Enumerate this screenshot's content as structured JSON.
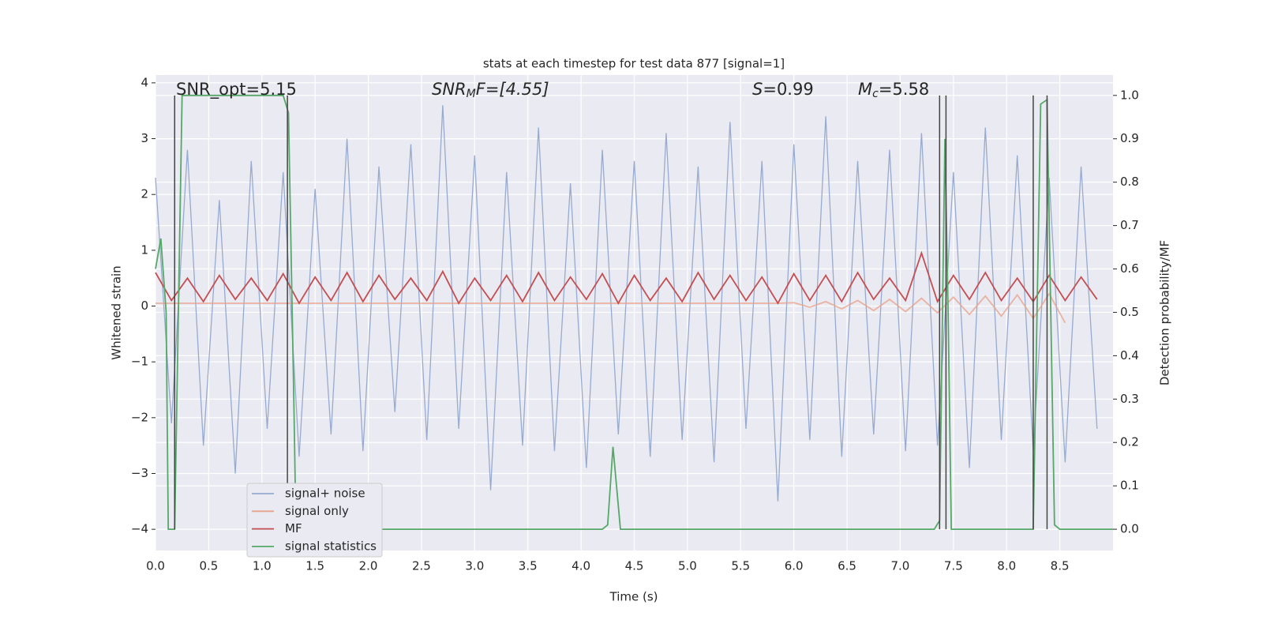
{
  "chart_data": {
    "type": "line",
    "title": "stats at each timestep for test data 877 [signal=1]",
    "x_label": "Time (s)",
    "y_label": "Whitened strain",
    "y2_label": "Detection probability/MF",
    "annotations": [
      {
        "parts": [
          {
            "text": "SNR_opt=5.15",
            "style": "normal"
          }
        ]
      },
      {
        "parts": [
          {
            "text": "SNR",
            "style": "italic"
          },
          {
            "text": "M",
            "style": "sub"
          },
          {
            "text": "F=[4.55]",
            "style": "italic-mixed"
          }
        ]
      },
      {
        "parts": [
          {
            "text": "S",
            "style": "italic"
          },
          {
            "text": "=0.99",
            "style": "normal"
          }
        ]
      },
      {
        "parts": [
          {
            "text": "M",
            "style": "italic"
          },
          {
            "text": "c",
            "style": "sub"
          },
          {
            "text": "=5.58",
            "style": "normal"
          }
        ]
      }
    ],
    "x": [
      0,
      0.15,
      0.3,
      0.45,
      0.6,
      0.75,
      0.9,
      1.05,
      1.2,
      1.35,
      1.5,
      1.65,
      1.8,
      1.95,
      2.1,
      2.25,
      2.4,
      2.55,
      2.7,
      2.85,
      3,
      3.15,
      3.3,
      3.45,
      3.6,
      3.75,
      3.9,
      4.05,
      4.2,
      4.35,
      4.5,
      4.65,
      4.8,
      4.95,
      5.1,
      5.25,
      5.4,
      5.55,
      5.7,
      5.85,
      6,
      6.15,
      6.3,
      6.45,
      6.6,
      6.75,
      6.9,
      7.05,
      7.2,
      7.35,
      7.5,
      7.65,
      7.8,
      7.95,
      8.1,
      8.25,
      8.4,
      8.55,
      8.7,
      8.85
    ],
    "series": [
      {
        "name": "signal+ noise",
        "color": "#97aacf",
        "values": [
          2.3,
          -2.1,
          2.8,
          -2.5,
          1.9,
          -3.0,
          2.6,
          -2.2,
          2.4,
          -2.7,
          2.1,
          -2.3,
          3.0,
          -2.6,
          2.5,
          -1.9,
          2.9,
          -2.4,
          3.6,
          -2.2,
          2.7,
          -3.3,
          2.4,
          -2.5,
          3.2,
          -2.6,
          2.2,
          -2.9,
          2.8,
          -2.3,
          2.6,
          -2.7,
          3.1,
          -2.4,
          2.5,
          -2.8,
          3.3,
          -2.2,
          2.6,
          -3.5,
          2.9,
          -2.4,
          3.4,
          -2.7,
          2.6,
          -2.3,
          2.8,
          -2.6,
          3.1,
          -2.5,
          2.4,
          -2.9,
          3.2,
          -2.4,
          2.7,
          -2.6,
          2.3,
          -2.8,
          2.5,
          -2.2
        ]
      },
      {
        "name": "signal only",
        "color": "#e8a48c",
        "values": [
          0.05,
          0.05,
          0.05,
          0.05,
          0.05,
          0.05,
          0.05,
          0.05,
          0.05,
          0.05,
          0.05,
          0.05,
          0.05,
          0.05,
          0.05,
          0.05,
          0.05,
          0.05,
          0.05,
          0.05,
          0.05,
          0.05,
          0.05,
          0.05,
          0.05,
          0.05,
          0.05,
          0.05,
          0.05,
          0.05,
          0.05,
          0.05,
          0.05,
          0.05,
          0.05,
          0.05,
          0.05,
          0.05,
          0.05,
          0.05,
          0.06,
          -0.02,
          0.08,
          -0.05,
          0.1,
          -0.08,
          0.12,
          -0.1,
          0.14,
          -0.12,
          0.16,
          -0.15,
          0.18,
          -0.18,
          0.2,
          -0.22,
          0.22,
          -0.3,
          null,
          null
        ]
      },
      {
        "name": "MF",
        "color": "#c44e52",
        "values": [
          0.6,
          0.1,
          0.5,
          0.08,
          0.55,
          0.12,
          0.5,
          0.1,
          0.58,
          0.05,
          0.52,
          0.1,
          0.6,
          0.08,
          0.55,
          0.12,
          0.5,
          0.1,
          0.62,
          0.05,
          0.5,
          0.1,
          0.55,
          0.08,
          0.6,
          0.1,
          0.52,
          0.12,
          0.58,
          0.05,
          0.55,
          0.1,
          0.5,
          0.08,
          0.6,
          0.12,
          0.55,
          0.1,
          0.52,
          0.05,
          0.58,
          0.1,
          0.55,
          0.08,
          0.6,
          0.12,
          0.5,
          0.1,
          0.95,
          0.08,
          0.55,
          0.12,
          0.6,
          0.1,
          0.5,
          0.08,
          0.55,
          0.1,
          0.52,
          0.12
        ]
      },
      {
        "name": "signal statistics",
        "color": "#55a868",
        "axis": "y2",
        "x": [
          0,
          0.05,
          0.1,
          0.12,
          0.18,
          0.25,
          1.2,
          1.25,
          1.3,
          1.32,
          4.2,
          4.25,
          4.3,
          4.37,
          7.32,
          7.37,
          7.42,
          7.45,
          7.48,
          8.25,
          8.32,
          8.38,
          8.45,
          8.5,
          9.0
        ],
        "values": [
          0.6,
          0.67,
          0.5,
          0,
          0,
          1.0,
          1.0,
          0.96,
          0.3,
          0,
          0,
          0.01,
          0.19,
          0,
          0,
          0.02,
          0.9,
          0.5,
          0,
          0,
          0.98,
          0.99,
          0.01,
          0,
          0
        ]
      }
    ],
    "vlines": [
      0.18,
      1.24,
      7.37,
      7.43,
      8.25,
      8.38
    ],
    "vline_color": "#444444",
    "xlim": [
      0,
      9.0
    ],
    "ylim": [
      -4.38,
      4.14
    ],
    "y2lim": [
      -0.049,
      1.047
    ],
    "xticks": [
      {
        "value": 0,
        "label": "0.0"
      },
      0.5,
      {
        "value": 1,
        "label": "1.0"
      },
      1.5,
      {
        "value": 2,
        "label": "2.0"
      },
      2.5,
      {
        "value": 3,
        "label": "3.0"
      },
      3.5,
      {
        "value": 4,
        "label": "4.0"
      },
      4.5,
      {
        "value": 5,
        "label": "5.0"
      },
      5.5,
      {
        "value": 6,
        "label": "6.0"
      },
      6.5,
      {
        "value": 7,
        "label": "7.0"
      },
      7.5,
      {
        "value": 8,
        "label": "8.0"
      },
      8.5
    ],
    "yticks": [
      {
        "value": -4,
        "label": "−4"
      },
      {
        "value": -3,
        "label": "−3"
      },
      {
        "value": -2,
        "label": "−2"
      },
      {
        "value": -1,
        "label": "−1"
      },
      0,
      1,
      2,
      3,
      4
    ],
    "y2ticks": [
      {
        "value": 0,
        "label": "0.0"
      },
      0.1,
      0.2,
      0.3,
      0.4,
      0.5,
      0.6,
      0.7,
      0.8,
      0.9,
      {
        "value": 1,
        "label": "1.0"
      }
    ],
    "grid": true,
    "legend": "lower left"
  }
}
